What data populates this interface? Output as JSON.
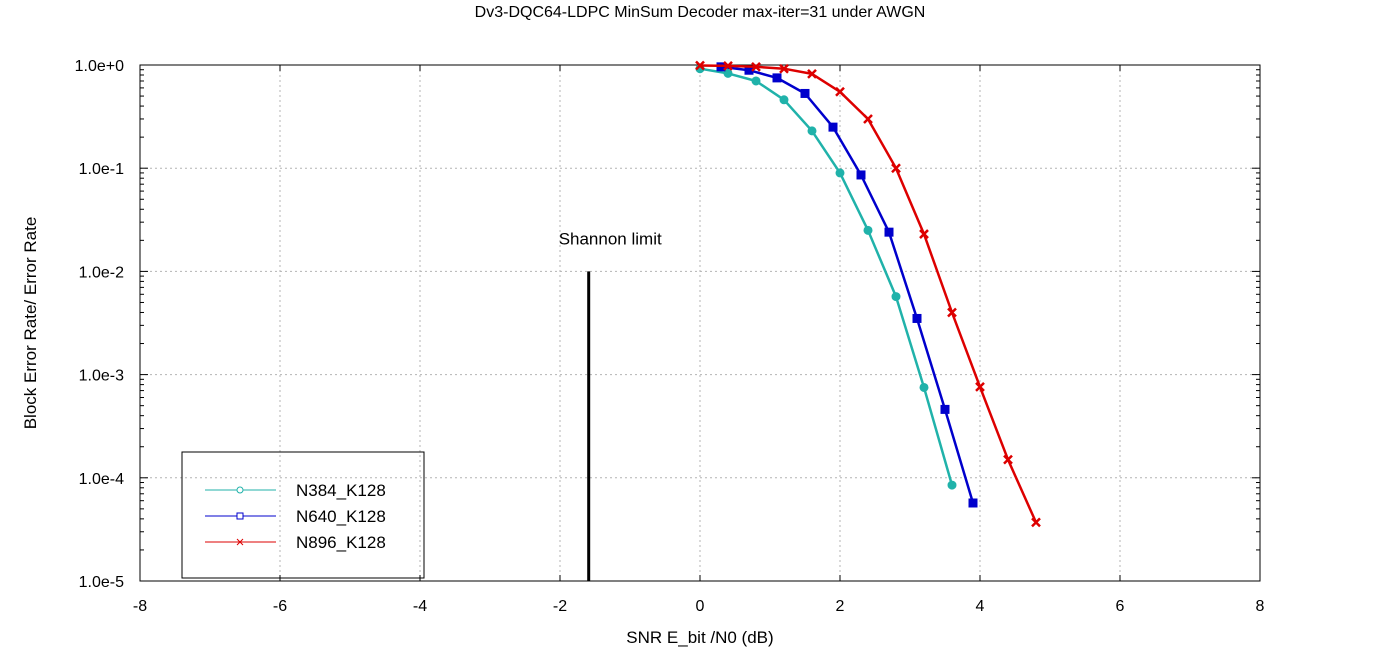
{
  "chart_data": {
    "type": "line",
    "title": "Dv3-DQC64-LDPC MinSum Decoder max-iter=31 under AWGN",
    "xlabel": "SNR E_bit /N0 (dB)",
    "ylabel": "Block Error Rate/ Error Rate",
    "xlim": [
      -8,
      8
    ],
    "ylim": [
      1e-05,
      1
    ],
    "yscale": "log",
    "grid": true,
    "legend_position": "bottom-left",
    "x_ticks": [
      -8,
      -6,
      -4,
      -2,
      0,
      2,
      4,
      6,
      8
    ],
    "x_tick_labels": [
      "-8",
      "-6",
      "-4",
      "-2",
      "0",
      "2",
      "4",
      "6",
      "8"
    ],
    "y_ticks": [
      1,
      0.1,
      0.01,
      0.001,
      0.0001,
      1e-05
    ],
    "y_tick_labels": [
      "1.0e+0",
      "1.0e-1",
      "1.0e-2",
      "1.0e-3",
      "1.0e-4",
      "1.0e-5"
    ],
    "series": [
      {
        "name": "N384_K128",
        "color": "#20b2aa",
        "marker": "circle",
        "x": [
          0.0,
          0.4,
          0.8,
          1.2,
          1.6,
          2.0,
          2.4,
          2.8,
          3.2,
          3.6
        ],
        "y": [
          0.92,
          0.83,
          0.7,
          0.46,
          0.23,
          0.09,
          0.025,
          0.0057,
          0.00075,
          8.5e-05
        ]
      },
      {
        "name": "N640_K128",
        "color": "#0000cc",
        "marker": "square",
        "x": [
          0.3,
          0.7,
          1.1,
          1.5,
          1.9,
          2.3,
          2.7,
          3.1,
          3.5,
          3.9
        ],
        "y": [
          0.96,
          0.89,
          0.75,
          0.53,
          0.25,
          0.086,
          0.024,
          0.0035,
          0.00046,
          5.7e-05
        ]
      },
      {
        "name": "N896_K128",
        "color": "#dd0000",
        "marker": "x",
        "x": [
          0.0,
          0.4,
          0.8,
          1.2,
          1.6,
          2.0,
          2.4,
          2.8,
          3.2,
          3.6,
          4.0,
          4.4,
          4.8
        ],
        "y": [
          0.99,
          0.98,
          0.96,
          0.92,
          0.82,
          0.55,
          0.3,
          0.1,
          0.023,
          0.004,
          0.00076,
          0.00015,
          3.7e-05
        ]
      }
    ],
    "annotations": [
      {
        "text": "Shannon limit",
        "x": -1.59,
        "y_from": 1e-05,
        "y_to": 0.01
      }
    ]
  }
}
